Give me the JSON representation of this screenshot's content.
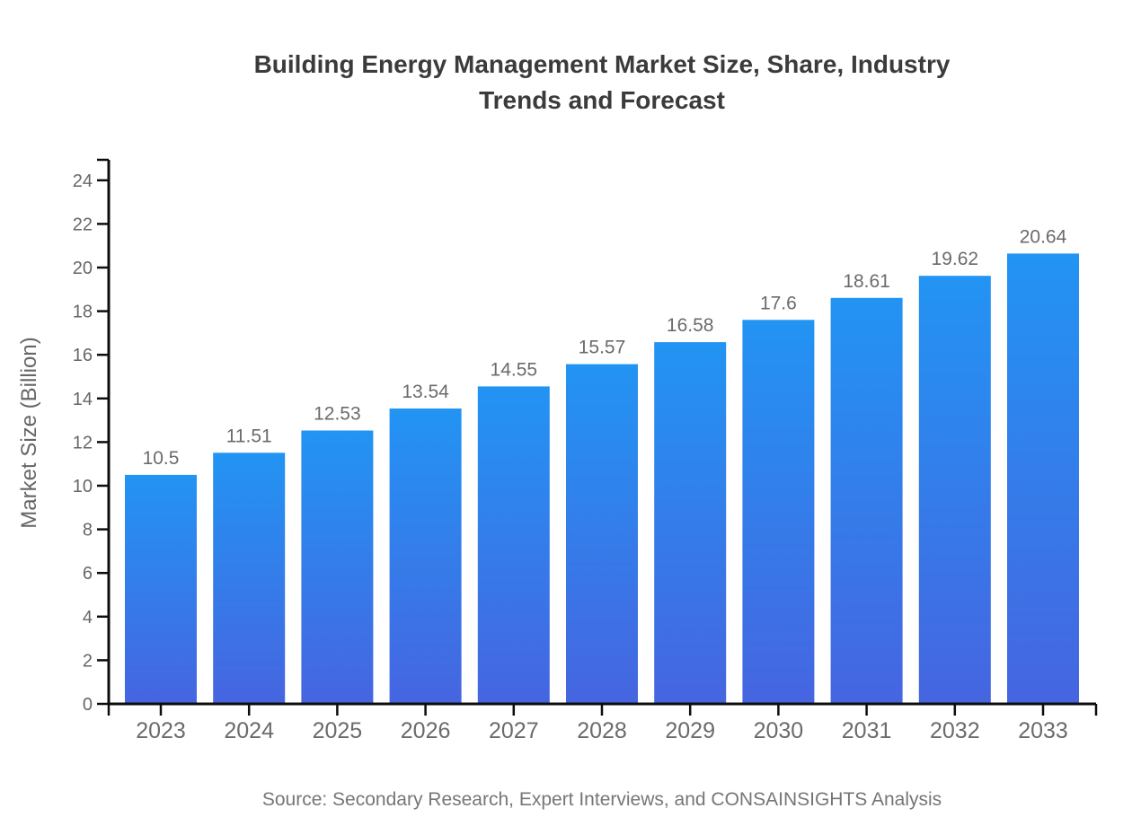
{
  "chart_data": {
    "type": "bar",
    "title": "Building Energy Management Market Size, Share, Industry Trends and Forecast",
    "ylabel": "Market Size (Billion)",
    "xlabel": "",
    "source": "Source: Secondary Research, Expert Interviews, and CONSAINSIGHTS Analysis",
    "categories": [
      "2023",
      "2024",
      "2025",
      "2026",
      "2027",
      "2028",
      "2029",
      "2030",
      "2031",
      "2032",
      "2033"
    ],
    "values": [
      10.5,
      11.51,
      12.53,
      13.54,
      14.55,
      15.57,
      16.58,
      17.6,
      18.61,
      19.62,
      20.64
    ],
    "value_labels": [
      "10.5",
      "11.51",
      "12.53",
      "13.54",
      "14.55",
      "15.57",
      "16.58",
      "17.6",
      "18.61",
      "19.62",
      "20.64"
    ],
    "ylim": [
      0,
      24
    ],
    "yticks": [
      0,
      2,
      4,
      6,
      8,
      10,
      12,
      14,
      16,
      18,
      20,
      22,
      24
    ],
    "grid": false,
    "legend_position": "none",
    "colors": {
      "bar_gradient_top": "#2294F3",
      "bar_gradient_bottom": "#4665E0",
      "axis": "#0d0d0d",
      "y_tick_label": "#666666",
      "x_tick_label": "#6b6b6b",
      "value_label": "#6b6b6b",
      "title": "#3b3b3b",
      "ylabel": "#666666",
      "source": "#76767a",
      "background": "#ffffff"
    }
  }
}
